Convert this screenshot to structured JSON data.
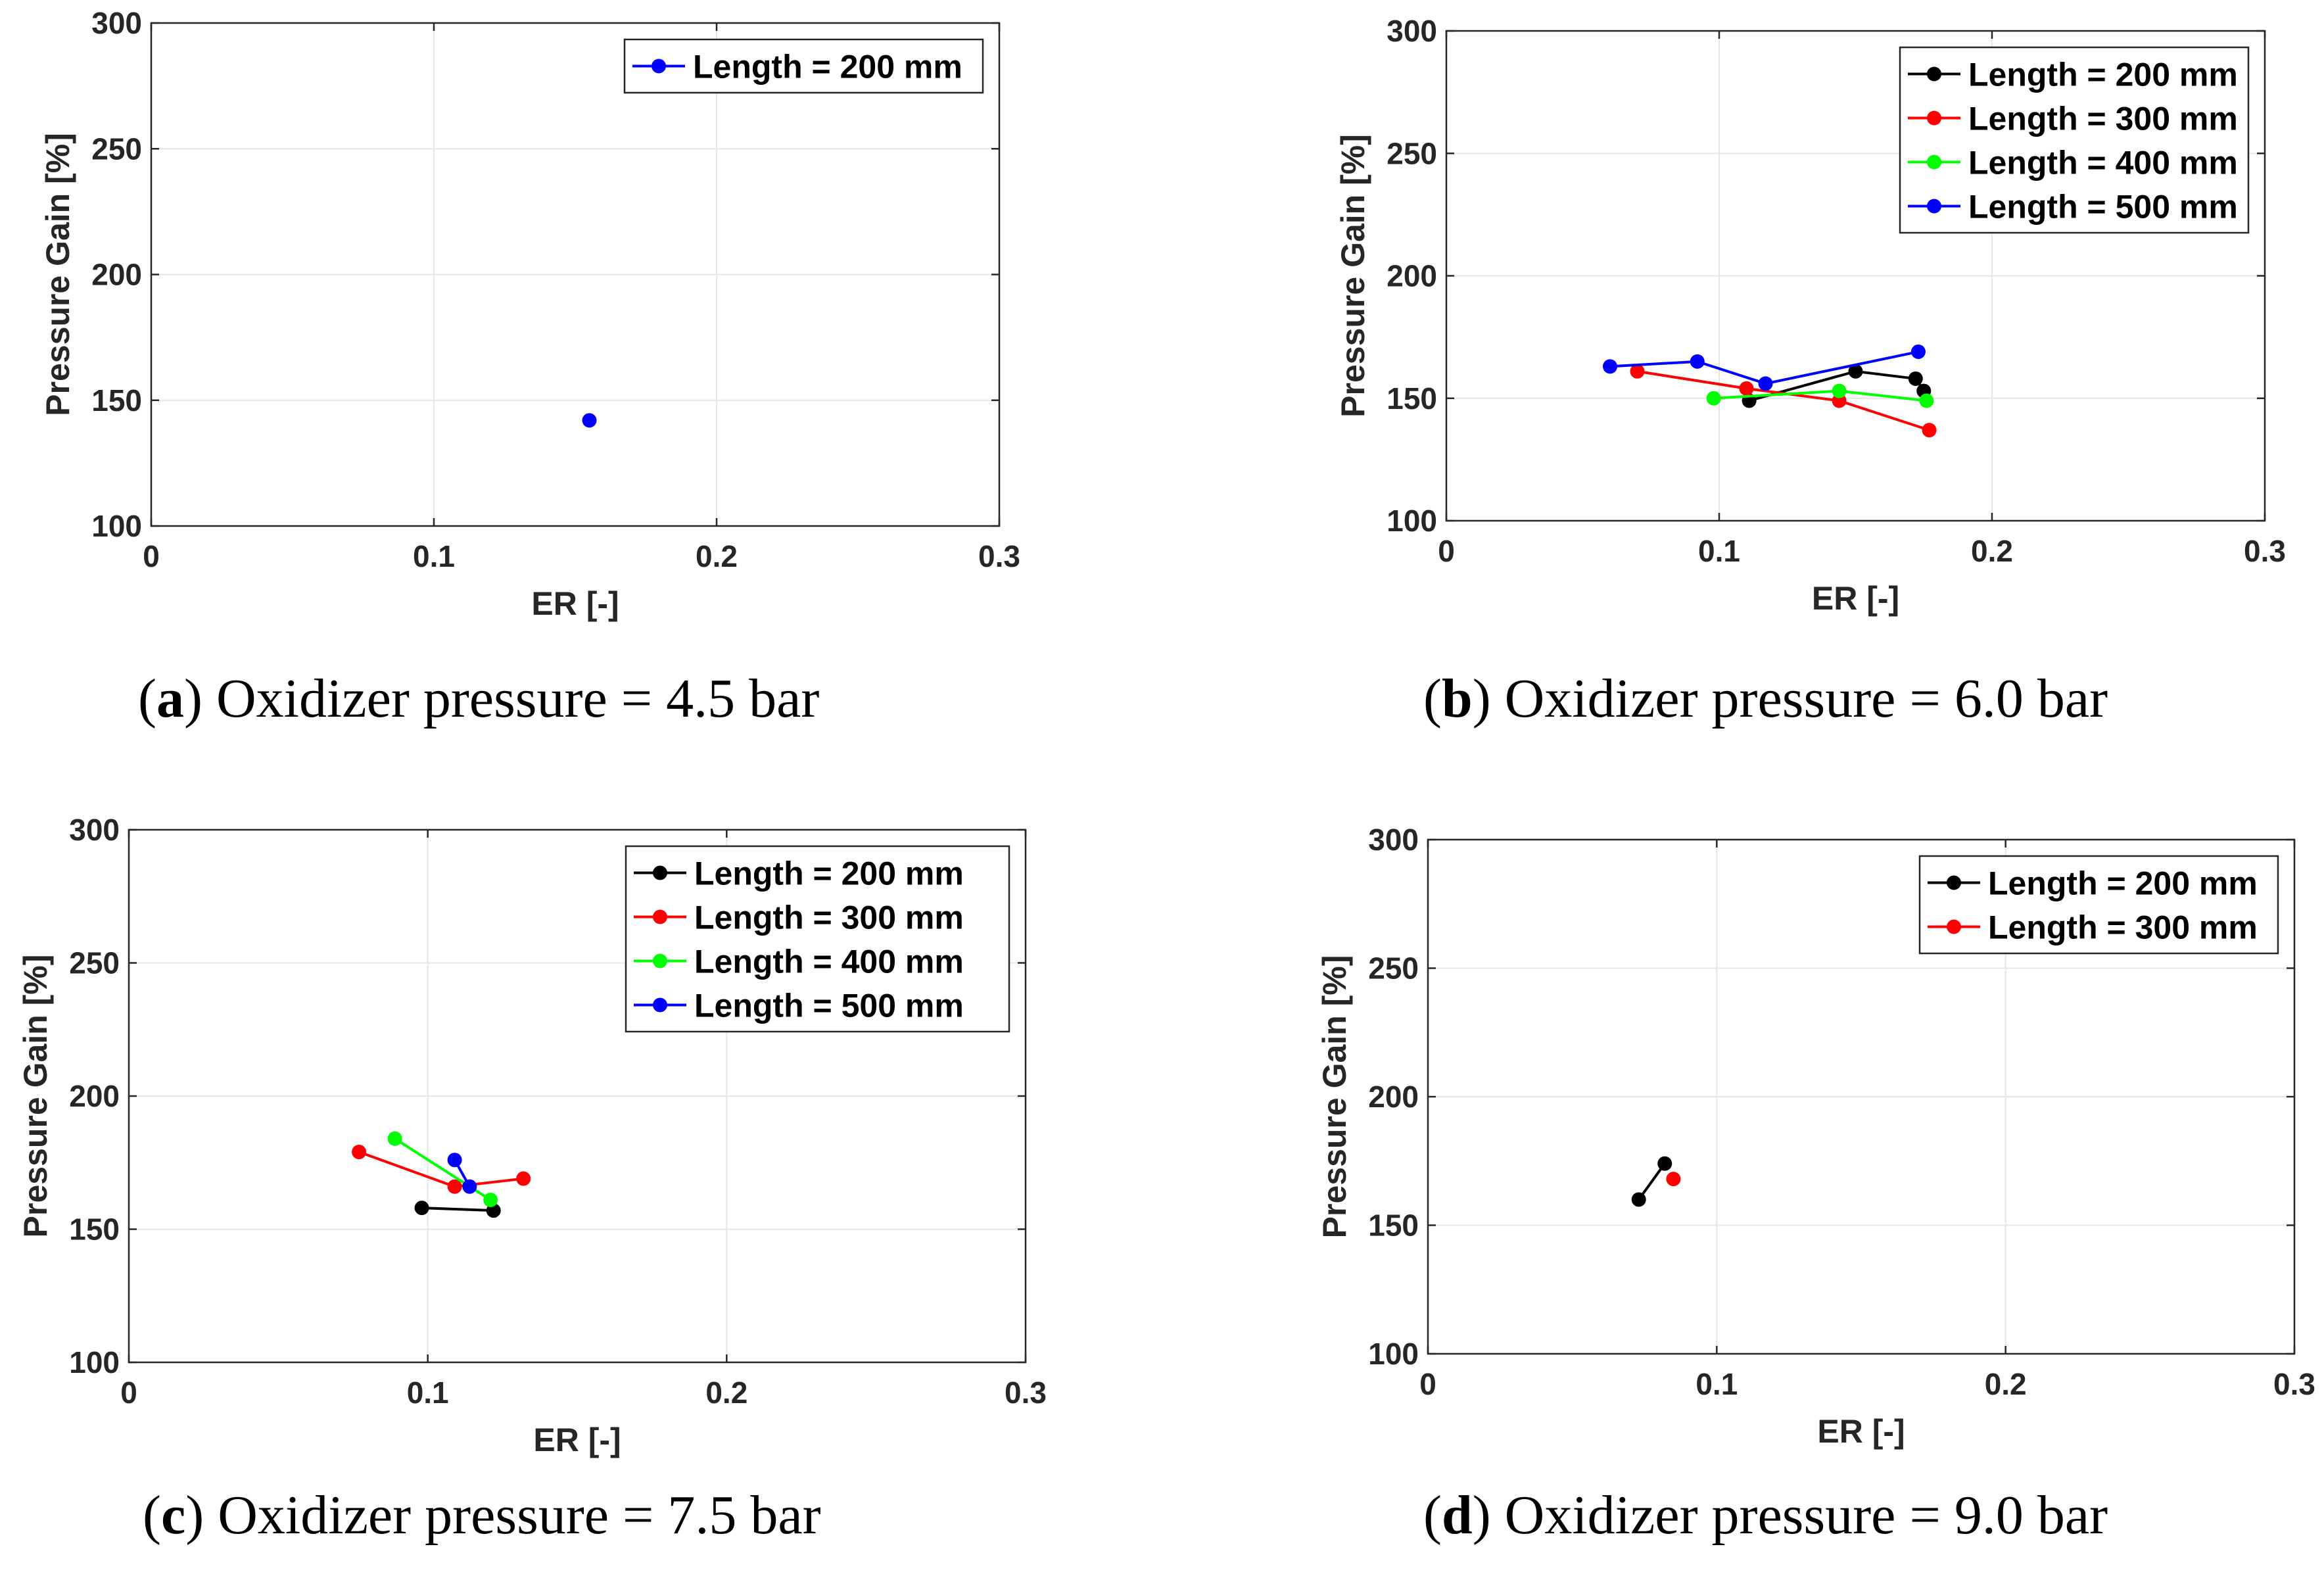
{
  "chart_data": [
    {
      "type": "line",
      "panel": "a",
      "caption": {
        "letter": "a",
        "text": "Oxidizer pressure = 4.5 bar"
      },
      "xlabel": "ER [-]",
      "ylabel": "Pressure Gain [%]",
      "xlim": [
        0,
        0.3
      ],
      "ylim": [
        100,
        300
      ],
      "xticks": [
        0,
        0.1,
        0.2,
        0.3
      ],
      "xtick_labels": [
        "0",
        "0.1",
        "0.2",
        "0.3"
      ],
      "yticks": [
        100,
        150,
        200,
        250,
        300
      ],
      "ytick_labels": [
        "100",
        "150",
        "200",
        "250",
        "300"
      ],
      "grid": true,
      "legend_position": "top-right",
      "series": [
        {
          "name": "Length = 200 mm",
          "color": "#0000ff",
          "x": [
            0.155
          ],
          "y": [
            142
          ]
        }
      ]
    },
    {
      "type": "line",
      "panel": "b",
      "caption": {
        "letter": "b",
        "text": "Oxidizer pressure = 6.0 bar"
      },
      "xlabel": "ER [-]",
      "ylabel": "Pressure Gain [%]",
      "xlim": [
        0,
        0.3
      ],
      "ylim": [
        100,
        300
      ],
      "xticks": [
        0,
        0.1,
        0.2,
        0.3
      ],
      "xtick_labels": [
        "0",
        "0.1",
        "0.2",
        "0.3"
      ],
      "yticks": [
        100,
        150,
        200,
        250,
        300
      ],
      "ytick_labels": [
        "100",
        "150",
        "200",
        "250",
        "300"
      ],
      "grid": true,
      "legend_position": "top-right",
      "series": [
        {
          "name": "Length = 200 mm",
          "color": "#000000",
          "x": [
            0.111,
            0.15,
            0.172,
            0.175
          ],
          "y": [
            149,
            161,
            158,
            153
          ]
        },
        {
          "name": "Length = 300 mm",
          "color": "#ff0000",
          "x": [
            0.07,
            0.11,
            0.144,
            0.177
          ],
          "y": [
            161,
            154,
            149,
            137
          ]
        },
        {
          "name": "Length = 400 mm",
          "color": "#00ff00",
          "x": [
            0.098,
            0.144,
            0.176
          ],
          "y": [
            150,
            153,
            149
          ]
        },
        {
          "name": "Length = 500 mm",
          "color": "#0000ff",
          "x": [
            0.06,
            0.092,
            0.117,
            0.173
          ],
          "y": [
            163,
            165,
            156,
            169
          ]
        }
      ]
    },
    {
      "type": "line",
      "panel": "c",
      "caption": {
        "letter": "c",
        "text": "Oxidizer pressure = 7.5 bar"
      },
      "xlabel": "ER [-]",
      "ylabel": "Pressure Gain [%]",
      "xlim": [
        0,
        0.3
      ],
      "ylim": [
        100,
        300
      ],
      "xticks": [
        0,
        0.1,
        0.2,
        0.3
      ],
      "xtick_labels": [
        "0",
        "0.1",
        "0.2",
        "0.3"
      ],
      "yticks": [
        100,
        150,
        200,
        250,
        300
      ],
      "ytick_labels": [
        "100",
        "150",
        "200",
        "250",
        "300"
      ],
      "grid": true,
      "legend_position": "top-right",
      "series": [
        {
          "name": "Length = 200 mm",
          "color": "#000000",
          "x": [
            0.098,
            0.122
          ],
          "y": [
            158,
            157
          ]
        },
        {
          "name": "Length = 300 mm",
          "color": "#ff0000",
          "x": [
            0.077,
            0.109,
            0.132
          ],
          "y": [
            179,
            166,
            169
          ]
        },
        {
          "name": "Length = 400 mm",
          "color": "#00ff00",
          "x": [
            0.089,
            0.121
          ],
          "y": [
            184,
            161
          ]
        },
        {
          "name": "Length = 500 mm",
          "color": "#0000ff",
          "x": [
            0.109,
            0.114
          ],
          "y": [
            176,
            166
          ]
        }
      ]
    },
    {
      "type": "line",
      "panel": "d",
      "caption": {
        "letter": "d",
        "text": "Oxidizer pressure = 9.0 bar"
      },
      "xlabel": "ER [-]",
      "ylabel": "Pressure Gain [%]",
      "xlim": [
        0,
        0.3
      ],
      "ylim": [
        100,
        300
      ],
      "xticks": [
        0,
        0.1,
        0.2,
        0.3
      ],
      "xtick_labels": [
        "0",
        "0.1",
        "0.2",
        "0.3"
      ],
      "yticks": [
        100,
        150,
        200,
        250,
        300
      ],
      "ytick_labels": [
        "100",
        "150",
        "200",
        "250",
        "300"
      ],
      "grid": true,
      "legend_position": "top-right",
      "series": [
        {
          "name": "Length = 200 mm",
          "color": "#000000",
          "x": [
            0.073,
            0.082
          ],
          "y": [
            160,
            174
          ]
        },
        {
          "name": "Length = 300 mm",
          "color": "#ff0000",
          "x": [
            0.085
          ],
          "y": [
            168
          ]
        }
      ]
    }
  ]
}
